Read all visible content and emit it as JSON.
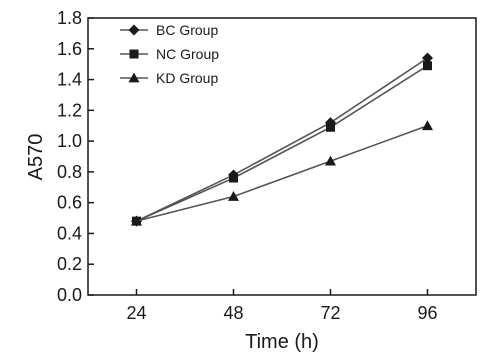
{
  "chart_data": {
    "type": "line",
    "title": "",
    "xlabel": "Time (h)",
    "ylabel": "A570",
    "x": [
      24,
      48,
      72,
      96
    ],
    "xlim": [
      12,
      108
    ],
    "ylim": [
      0,
      1.8
    ],
    "yticks": [
      0.0,
      0.2,
      0.4,
      0.6,
      0.8,
      1.0,
      1.2,
      1.4,
      1.6,
      1.8
    ],
    "ytick_labels": [
      "0.0",
      "0.2",
      "0.4",
      "0.6",
      "0.8",
      "1.0",
      "1.2",
      "1.4",
      "1.6",
      "1.8"
    ],
    "grid": false,
    "legend_position": "top-left",
    "series": [
      {
        "name": "BC Group",
        "marker": "diamond",
        "values": [
          0.48,
          0.78,
          1.12,
          1.54
        ]
      },
      {
        "name": "NC Group",
        "marker": "square",
        "values": [
          0.48,
          0.76,
          1.09,
          1.49
        ]
      },
      {
        "name": "KD Group",
        "marker": "triangle",
        "values": [
          0.48,
          0.64,
          0.87,
          1.1
        ]
      }
    ],
    "colors": {
      "line": "#555555",
      "marker": "#1a1a1a",
      "axis": "#1a1a1a"
    }
  }
}
